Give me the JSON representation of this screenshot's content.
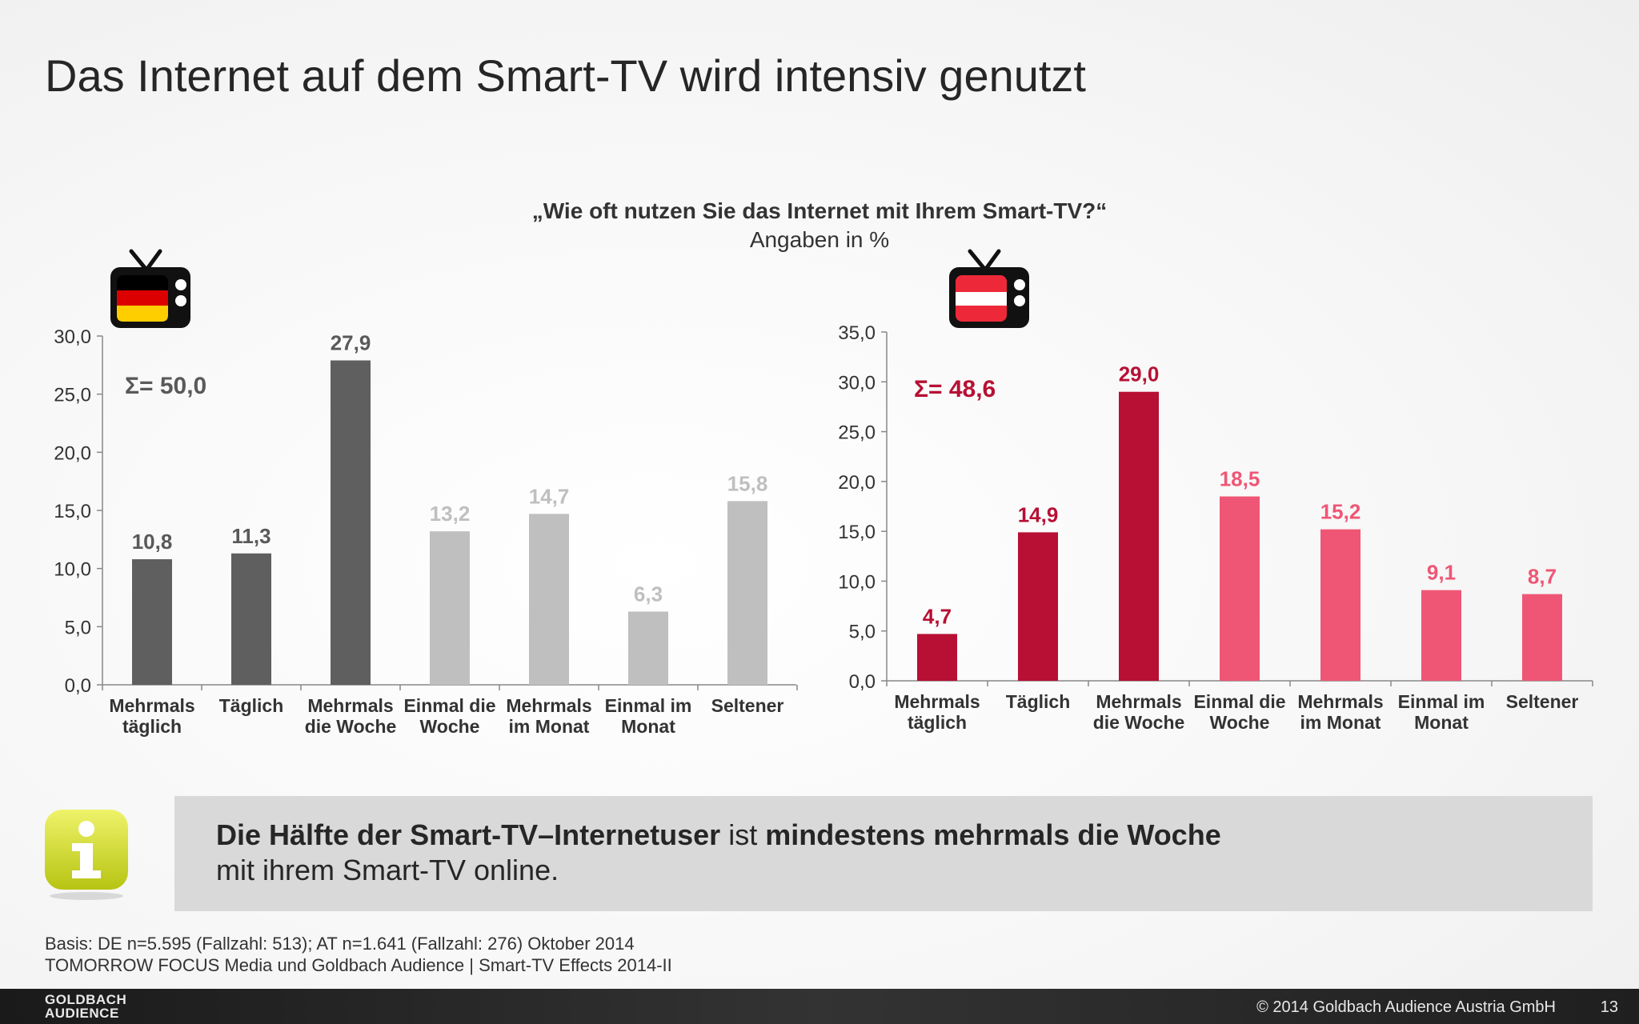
{
  "title": "Das Internet auf dem Smart-TV wird intensiv genutzt",
  "question": "„Wie oft nutzen Sie das Internet mit Ihrem Smart-TV?“",
  "unit": "Angaben in %",
  "chart_data": [
    {
      "type": "bar",
      "country_icon": "tv-germany-flag-icon",
      "categories": [
        [
          "Mehrmals",
          "täglich"
        ],
        [
          "Täglich"
        ],
        [
          "Mehrmals",
          "die Woche"
        ],
        [
          "Einmal die",
          "Woche"
        ],
        [
          "Mehrmals",
          "im Monat"
        ],
        [
          "Einmal im",
          "Monat"
        ],
        [
          "Seltener"
        ]
      ],
      "values": [
        10.8,
        11.3,
        27.9,
        13.2,
        14.7,
        6.3,
        15.8
      ],
      "value_labels": [
        "10,8",
        "11,3",
        "27,9",
        "13,2",
        "14,7",
        "6,3",
        "15,8"
      ],
      "bar_colors": [
        "#5f5f5f",
        "#5f5f5f",
        "#5f5f5f",
        "#bfbfbf",
        "#bfbfbf",
        "#bfbfbf",
        "#bfbfbf"
      ],
      "label_colors": [
        "#595959",
        "#595959",
        "#595959",
        "#bfbfbf",
        "#bfbfbf",
        "#bfbfbf",
        "#bfbfbf"
      ],
      "ylim": [
        0,
        30
      ],
      "yticks": [
        "0,0",
        "5,0",
        "10,0",
        "15,0",
        "20,0",
        "25,0",
        "30,0"
      ],
      "ytick_step": 5,
      "sum_label": "Σ= 50,0",
      "sum_color": "#595959",
      "grid": false
    },
    {
      "type": "bar",
      "country_icon": "tv-austria-flag-icon",
      "categories": [
        [
          "Mehrmals",
          "täglich"
        ],
        [
          "Täglich"
        ],
        [
          "Mehrmals",
          "die Woche"
        ],
        [
          "Einmal die",
          "Woche"
        ],
        [
          "Mehrmals",
          "im Monat"
        ],
        [
          "Einmal im",
          "Monat"
        ],
        [
          "Seltener"
        ]
      ],
      "values": [
        4.7,
        14.9,
        29.0,
        18.5,
        15.2,
        9.1,
        8.7
      ],
      "value_labels": [
        "4,7",
        "14,9",
        "29,0",
        "18,5",
        "15,2",
        "9,1",
        "8,7"
      ],
      "bar_colors": [
        "#b71034",
        "#b71034",
        "#b71034",
        "#ef5675",
        "#ef5675",
        "#ef5675",
        "#ef5675"
      ],
      "label_colors": [
        "#b71034",
        "#b71034",
        "#b71034",
        "#ef5675",
        "#ef5675",
        "#ef5675",
        "#ef5675"
      ],
      "ylim": [
        0,
        35
      ],
      "yticks": [
        "0,0",
        "5,0",
        "10,0",
        "15,0",
        "20,0",
        "25,0",
        "30,0",
        "35,0"
      ],
      "ytick_step": 5,
      "sum_label": "Σ= 48,6",
      "sum_color": "#b71034",
      "grid": false
    }
  ],
  "info": {
    "icon": "info-icon",
    "part1": "Die Hälfte der Smart-TV–Internetuser",
    "part2": " ist ",
    "part3": "mindestens mehrmals die Woche",
    "line2": "mit ihrem Smart-TV online."
  },
  "basis": {
    "line1": "Basis: DE n=5.595 (Fallzahl: 513); AT n=1.641 (Fallzahl: 276) Oktober 2014",
    "line2": "TOMORROW FOCUS Media und Goldbach Audience | Smart-TV Effects 2014-II"
  },
  "footer": {
    "logo_line1": "GOLDBACH",
    "logo_line2": "AUDIENCE",
    "copyright": "© 2014 Goldbach Audience Austria GmbH",
    "page": "13"
  }
}
